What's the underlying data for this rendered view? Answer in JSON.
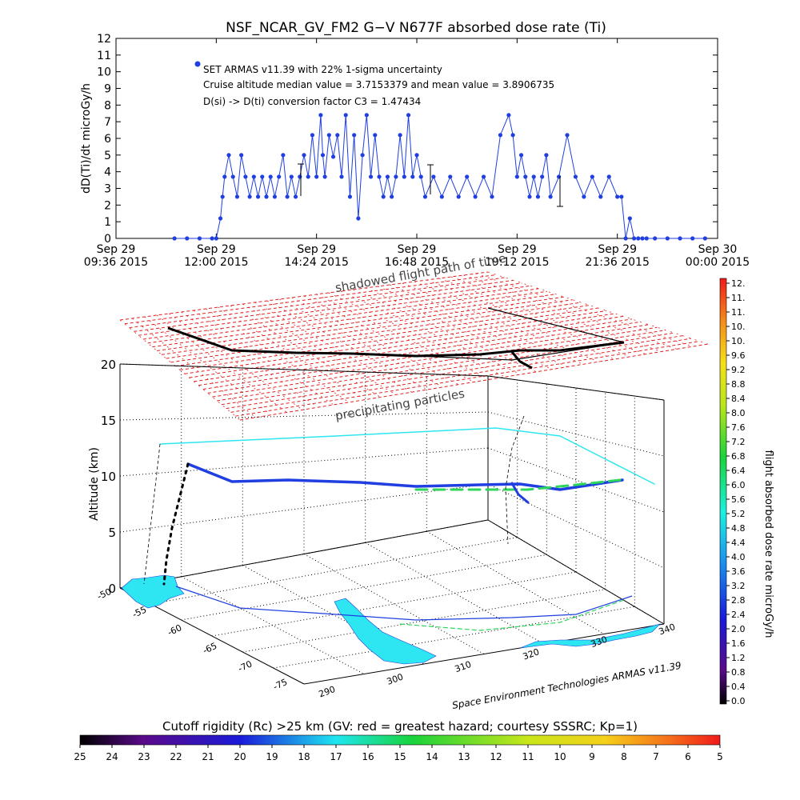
{
  "chart_data": [
    {
      "type": "line",
      "title": "NSF_NCAR_GV_FM2 G−V     N677F  absorbed dose rate (Ti)",
      "ylabel": "dD(Ti)/dt microGy/h",
      "ylim": [
        0,
        12
      ],
      "yticks": [
        0,
        1,
        2,
        3,
        4,
        5,
        6,
        7,
        8,
        9,
        10,
        11,
        12
      ],
      "xlim_hours": [
        9.6,
        24.0
      ],
      "xticks": [
        {
          "line1": "Sep 29",
          "line2": "09:36 2015"
        },
        {
          "line1": "Sep 29",
          "line2": "12:00 2015"
        },
        {
          "line1": "Sep 29",
          "line2": "14:24 2015"
        },
        {
          "line1": "Sep 29",
          "line2": "16:48 2015"
        },
        {
          "line1": "Sep 29",
          "line2": "19:12 2015"
        },
        {
          "line1": "Sep 29",
          "line2": "21:36 2015"
        },
        {
          "line1": "Sep 30",
          "line2": "00:00 2015"
        }
      ],
      "annotations": [
        "SET ARMAS v11.39 with 22% 1-sigma uncertainty",
        "Cruise altitude median value = 3.7153379 and mean value = 3.8906735",
        "D(si) -> D(ti) conversion factor C3 = 1.47434"
      ],
      "overlay_text": "shadowed flight path of time",
      "series": [
        {
          "color": "#1f3fe0",
          "x": [
            11.0,
            11.3,
            11.6,
            11.9,
            12.0,
            12.1,
            12.15,
            12.2,
            12.3,
            12.4,
            12.5,
            12.6,
            12.7,
            12.8,
            12.9,
            13.0,
            13.1,
            13.2,
            13.3,
            13.4,
            13.5,
            13.6,
            13.7,
            13.8,
            13.9,
            14.0,
            14.1,
            14.2,
            14.3,
            14.4,
            14.5,
            14.55,
            14.6,
            14.7,
            14.8,
            14.9,
            15.0,
            15.1,
            15.2,
            15.3,
            15.4,
            15.5,
            15.6,
            15.7,
            15.8,
            15.9,
            16.0,
            16.1,
            16.2,
            16.3,
            16.4,
            16.5,
            16.6,
            16.7,
            16.8,
            16.9,
            17.0,
            17.2,
            17.4,
            17.6,
            17.8,
            18.0,
            18.2,
            18.4,
            18.6,
            18.8,
            19.0,
            19.1,
            19.2,
            19.3,
            19.4,
            19.5,
            19.6,
            19.7,
            19.8,
            19.9,
            20.0,
            20.2,
            20.4,
            20.6,
            20.8,
            21.0,
            21.2,
            21.4,
            21.6,
            21.7,
            21.8,
            21.9,
            22.0,
            22.1,
            22.2,
            22.3,
            22.5,
            22.8,
            23.1,
            23.4,
            23.7
          ],
          "y": [
            0,
            0,
            0,
            0,
            0,
            1.2,
            2.5,
            3.7,
            5.0,
            3.7,
            2.5,
            5.0,
            3.7,
            2.5,
            3.7,
            2.5,
            3.7,
            2.5,
            3.7,
            2.5,
            3.7,
            5.0,
            2.5,
            3.7,
            2.5,
            3.7,
            5.0,
            3.7,
            6.2,
            3.7,
            7.4,
            5.0,
            3.7,
            6.2,
            4.9,
            6.2,
            3.7,
            7.4,
            2.5,
            6.2,
            1.2,
            5.0,
            7.4,
            3.7,
            6.2,
            3.7,
            2.5,
            3.7,
            2.5,
            3.7,
            6.2,
            3.7,
            7.4,
            3.7,
            5.0,
            3.7,
            2.5,
            3.7,
            2.5,
            3.7,
            2.5,
            3.7,
            2.5,
            3.7,
            2.5,
            6.2,
            7.4,
            6.2,
            3.7,
            5.0,
            3.7,
            2.5,
            3.7,
            2.5,
            3.7,
            5.0,
            2.5,
            3.7,
            6.2,
            3.7,
            2.5,
            3.7,
            2.5,
            3.7,
            2.5,
            2.5,
            0,
            1.2,
            0,
            0,
            0,
            0,
            0,
            0,
            0,
            0,
            0
          ]
        }
      ]
    },
    {
      "type": "scatter",
      "title": "",
      "zlabel": "Altitude (km)",
      "zticks": [
        0,
        5,
        10,
        15,
        20
      ],
      "lat_ticks": [
        -50,
        -55,
        -60,
        -65,
        -70,
        -75
      ],
      "lon_ticks": [
        290,
        300,
        310,
        320,
        330,
        340
      ],
      "layer_label": "precipitating particles",
      "credit": "Space Environment Technologies ARMAS v11.39",
      "dose_colorbar": {
        "label": "flight absorbed dose rate microGy/h",
        "ticks": [
          "12.",
          "11.",
          "11.",
          "10.",
          "10.",
          "9.6",
          "9.2",
          "8.8",
          "8.4",
          "8.0",
          "7.6",
          "7.2",
          "6.8",
          "6.4",
          "6.0",
          "5.6",
          "5.2",
          "4.8",
          "4.4",
          "4.0",
          "3.6",
          "3.2",
          "2.8",
          "2.4",
          "2.0",
          "1.6",
          "1.2",
          "0.8",
          "0.4",
          "0.0"
        ]
      },
      "rc_colorbar": {
        "label": "Cutoff rigidity (Rc) >25 km (GV: red = greatest hazard; courtesy SSSRC; Kp=1)",
        "ticks": [
          "25",
          "24",
          "23",
          "22",
          "21",
          "20",
          "19",
          "18",
          "17",
          "16",
          "15",
          "14",
          "13",
          "12",
          "11",
          "10",
          "9",
          "8",
          "7",
          "6",
          "5"
        ]
      }
    }
  ]
}
